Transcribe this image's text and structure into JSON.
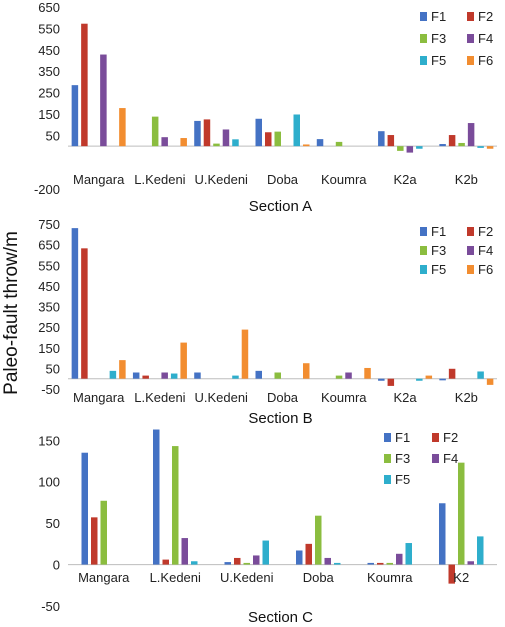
{
  "figure": {
    "ylabel": "Paleo-fault throw/m"
  },
  "chart_data": [
    {
      "type": "bar",
      "title": "Section A",
      "ylim": [
        -200,
        650
      ],
      "yticks": [
        -200,
        50,
        150,
        250,
        350,
        450,
        550,
        650
      ],
      "legend": "top-right",
      "categories": [
        "Mangara",
        "L.Kedeni",
        "U.Kedeni",
        "Doba",
        "Koumra",
        "K2a",
        "K2b"
      ],
      "series": [
        {
          "name": "F1",
          "color": "#4472c4",
          "values": [
            285,
            0,
            118,
            128,
            33,
            70,
            10
          ]
        },
        {
          "name": "F2",
          "color": "#c0392b",
          "values": [
            572,
            0,
            125,
            65,
            0,
            52,
            52
          ]
        },
        {
          "name": "F3",
          "color": "#8bbd3f",
          "values": [
            0,
            138,
            12,
            68,
            20,
            -22,
            15
          ]
        },
        {
          "name": "F4",
          "color": "#7a4c9a",
          "values": [
            428,
            42,
            78,
            0,
            0,
            -30,
            108
          ]
        },
        {
          "name": "F5",
          "color": "#2eaecc",
          "values": [
            0,
            0,
            32,
            148,
            0,
            -12,
            -8
          ]
        },
        {
          "name": "F6",
          "color": "#f28d30",
          "values": [
            178,
            38,
            0,
            8,
            0,
            0,
            -12
          ]
        }
      ]
    },
    {
      "type": "bar",
      "title": "Section B",
      "ylim": [
        -50,
        750
      ],
      "yticks": [
        -50,
        50,
        150,
        250,
        350,
        450,
        550,
        650,
        750
      ],
      "legend": "top-right",
      "categories": [
        "Mangara",
        "L.Kedeni",
        "U.Kedeni",
        "Doba",
        "Koumra",
        "K2a",
        "K2b"
      ],
      "series": [
        {
          "name": "F1",
          "color": "#4472c4",
          "values": [
            730,
            30,
            30,
            38,
            0,
            -10,
            -8
          ]
        },
        {
          "name": "F2",
          "color": "#c0392b",
          "values": [
            632,
            15,
            0,
            0,
            0,
            -35,
            48
          ]
        },
        {
          "name": "F3",
          "color": "#8bbd3f",
          "values": [
            0,
            0,
            0,
            30,
            15,
            0,
            0
          ]
        },
        {
          "name": "F4",
          "color": "#7a4c9a",
          "values": [
            0,
            30,
            0,
            0,
            30,
            0,
            0
          ]
        },
        {
          "name": "F5",
          "color": "#2eaecc",
          "values": [
            38,
            25,
            15,
            0,
            0,
            -10,
            35
          ]
        },
        {
          "name": "F6",
          "color": "#f28d30",
          "values": [
            90,
            175,
            238,
            75,
            52,
            15,
            -30
          ]
        }
      ]
    },
    {
      "type": "bar",
      "title": "Section C",
      "ylim": [
        -50,
        160
      ],
      "yticks": [
        -50,
        0,
        50,
        100,
        150
      ],
      "legend": "top-right",
      "categories": [
        "Mangara",
        "L.Kedeni",
        "U.Kedeni",
        "Doba",
        "Koumra",
        "K2"
      ],
      "series": [
        {
          "name": "F1",
          "color": "#4472c4",
          "values": [
            135,
            163,
            3,
            17,
            2,
            74
          ]
        },
        {
          "name": "F2",
          "color": "#c0392b",
          "values": [
            57,
            6,
            8,
            25,
            2,
            -23
          ]
        },
        {
          "name": "F3",
          "color": "#8bbd3f",
          "values": [
            77,
            143,
            2,
            59,
            2,
            123
          ]
        },
        {
          "name": "F4",
          "color": "#7a4c9a",
          "values": [
            0,
            32,
            11,
            8,
            13,
            4
          ]
        },
        {
          "name": "F5",
          "color": "#2eaecc",
          "values": [
            0,
            4,
            29,
            2,
            26,
            34
          ]
        }
      ]
    }
  ]
}
